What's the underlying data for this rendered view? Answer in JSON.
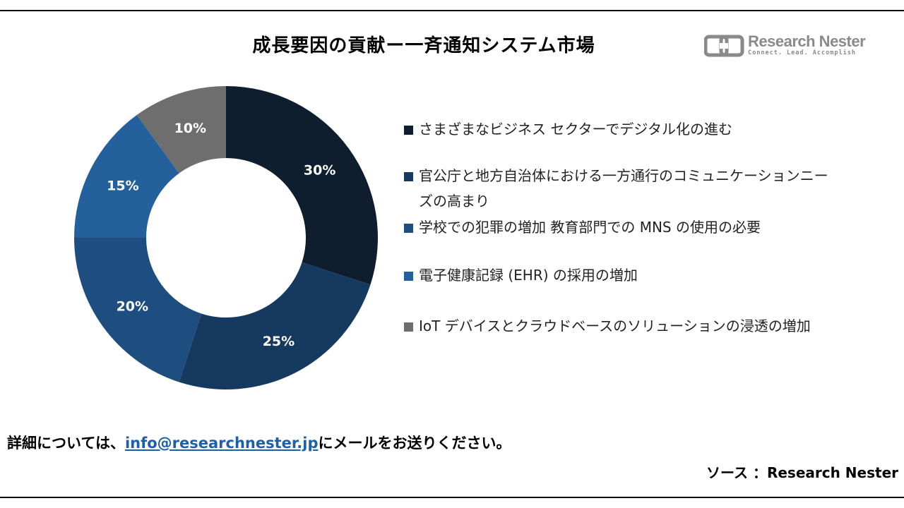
{
  "title": "成長要因の貢献ー一斉通知システム市場",
  "brand": {
    "name": "Research Nester",
    "tagline": "Connect. Lead. Accomplish"
  },
  "chart_data": {
    "type": "pie",
    "donut": true,
    "start_angle_deg": 0,
    "direction": "clockwise",
    "title": "成長要因の貢献ー一斉通知システム市場",
    "legend_position": "right",
    "categories": [
      "さまざまなビジネス セクターでデジタル化の進む",
      "官公庁と地方自治体における一方通行のコミュニケーションニーズの高まり",
      "学校での犯罪の増加 教育部門での MNS の使用の必要",
      "電子健康記録 (EHR) の採用の増加",
      "IoT デバイスとクラウドベースのソリューションの浸透の増加"
    ],
    "values": [
      30,
      25,
      20,
      15,
      10
    ],
    "labels": [
      "30%",
      "25%",
      "20%",
      "15%",
      "10%"
    ],
    "colors": [
      "#0f1e2e",
      "#163a5f",
      "#1d4e7f",
      "#24619c",
      "#6e6e6e"
    ]
  },
  "legend": {
    "items": [
      {
        "label": "さまざまなビジネス セクターでデジタル化の進む",
        "color": "#0f1e2e"
      },
      {
        "label": "官公庁と地方自治体における一方通行のコミュニケーションニーズの高まり",
        "color": "#163a5f"
      },
      {
        "label": "学校での犯罪の増加 教育部門での MNS の使用の必要",
        "color": "#1d4e7f"
      },
      {
        "label": "電子健康記録 (EHR) の採用の増加",
        "color": "#24619c"
      },
      {
        "label": "IoT デバイスとクラウドベースのソリューションの浸透の増加",
        "color": "#6e6e6e"
      }
    ]
  },
  "footer": {
    "prefix": "詳細については、",
    "email": "info@researchnester.jp",
    "suffix": "にメールをお送りください。",
    "source": "ソース ：Research Nester"
  }
}
